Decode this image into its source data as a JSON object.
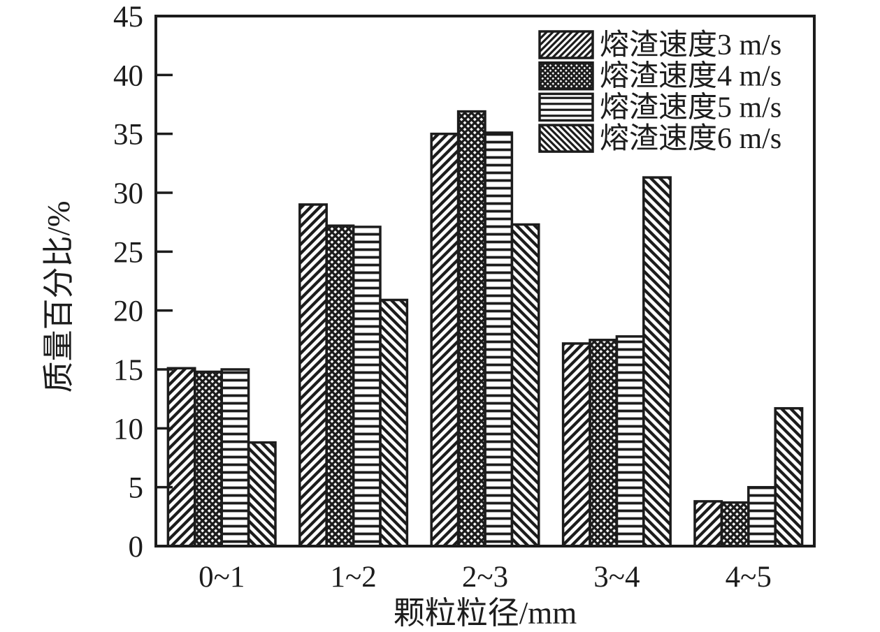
{
  "figure": {
    "background": "#ffffff",
    "ink_color": "#1c1c1c"
  },
  "chart_data": {
    "type": "bar",
    "title": "",
    "xlabel": "颗粒粒径/mm",
    "ylabel": "质量百分比/%",
    "categories": [
      "0~1",
      "1~2",
      "2~3",
      "3~4",
      "4~5"
    ],
    "series": [
      {
        "name": "熔渣速度3 m/s",
        "hatch": "diagonal-forward",
        "values": [
          15.1,
          29.0,
          35.0,
          17.2,
          3.8
        ]
      },
      {
        "name": "熔渣速度4 m/s",
        "hatch": "crosshatch",
        "values": [
          14.8,
          27.2,
          36.9,
          17.5,
          3.7
        ]
      },
      {
        "name": "熔渣速度5 m/s",
        "hatch": "horizontal-lines",
        "values": [
          15.0,
          27.1,
          35.1,
          17.8,
          5.0
        ]
      },
      {
        "name": "熔渣速度6 m/s",
        "hatch": "diagonal-backward",
        "values": [
          8.8,
          20.9,
          27.3,
          31.3,
          11.7
        ]
      }
    ],
    "ylim": [
      0,
      45
    ],
    "yticks": [
      0,
      5,
      10,
      15,
      20,
      25,
      30,
      35,
      40,
      45
    ],
    "ytick_labels": [
      "0",
      "5",
      "10",
      "15",
      "20",
      "25",
      "30",
      "35",
      "40",
      "45"
    ],
    "grid": false,
    "legend_position": "top-right-inside",
    "bar_fill": "#ffffff",
    "bar_outline_color": "#1c1c1c"
  }
}
